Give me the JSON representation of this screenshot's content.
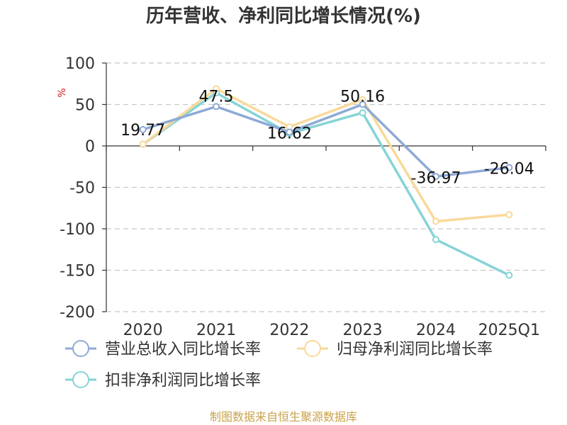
{
  "chart_data": {
    "type": "line",
    "title": "历年营收、净利同比增长情况(%)",
    "ylabel": "%",
    "categories": [
      "2020",
      "2021",
      "2022",
      "2023",
      "2024",
      "2025Q1"
    ],
    "ylim": [
      -200,
      100
    ],
    "yticks": [
      100,
      50,
      0,
      -50,
      -100,
      -150,
      -200
    ],
    "grid": true,
    "legend_position": "bottom",
    "series": [
      {
        "name": "营业总收入同比增长率",
        "color": "#8eaad6",
        "values": [
          19.77,
          47.5,
          16.62,
          50.16,
          -36.97,
          -26.04
        ],
        "labels": [
          "19.77",
          "47.5",
          "16.62",
          "50.16",
          "-36.97",
          "-26.04"
        ]
      },
      {
        "name": "归母净利润同比增长率",
        "color": "#f9d99a",
        "values": [
          2,
          69,
          23,
          56,
          -91,
          -83
        ],
        "labels": []
      },
      {
        "name": "扣非净利润同比增长率",
        "color": "#86d4d6",
        "values": [
          2,
          64,
          15,
          40,
          -113,
          -156
        ],
        "labels": []
      }
    ]
  },
  "footer": {
    "source": "制图数据来自恒生聚源数据库"
  }
}
